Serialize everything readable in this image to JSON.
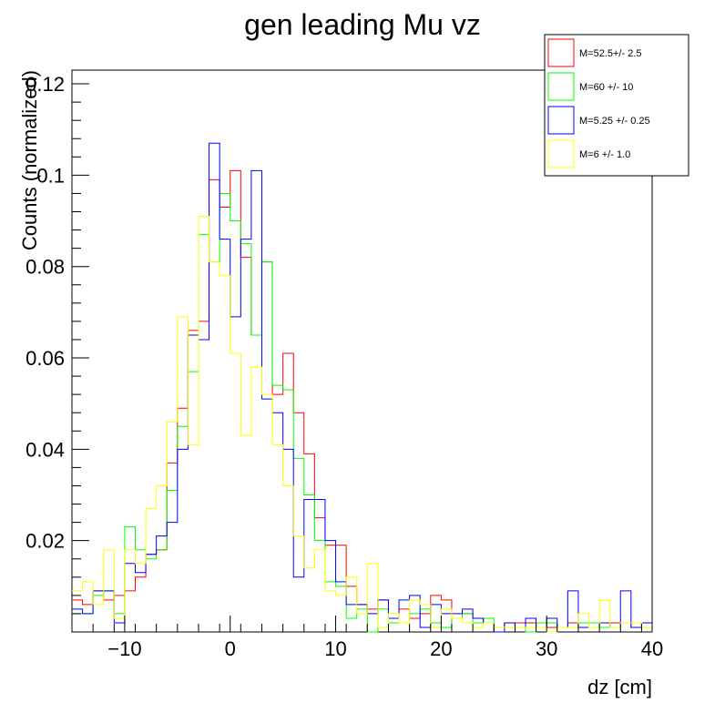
{
  "chart_data": {
    "type": "histogram",
    "title": "gen leading Mu vz",
    "xlabel": "dz [cm]",
    "ylabel": "Counts (normalized)",
    "xlim": [
      -15,
      40
    ],
    "ylim": [
      0,
      0.123
    ],
    "bin_width": 1,
    "x_ticks": [
      -10,
      0,
      10,
      20,
      30,
      40
    ],
    "x_tick_labels": [
      "−10",
      "0",
      "10",
      "20",
      "30",
      "40"
    ],
    "y_ticks": [
      0.02,
      0.04,
      0.06,
      0.08,
      0.1,
      0.12
    ],
    "y_tick_labels": [
      "0.02",
      "0.04",
      "0.06",
      "0.08",
      "0.1",
      "0.12"
    ],
    "legend_position": "top-right",
    "series": [
      {
        "name": "M=52.5+/- 2.5",
        "color": "#ff0000",
        "values": [
          0.007,
          0.006,
          0.009,
          0.007,
          0.008,
          0.009,
          0.012,
          0.017,
          0.018,
          0.037,
          0.049,
          0.066,
          0.068,
          0.099,
          0.093,
          0.101,
          0.082,
          0.065,
          0.081,
          0.052,
          0.061,
          0.048,
          0.039,
          0.025,
          0.019,
          0.019,
          0.01,
          0.006,
          0.005,
          0.007,
          0.003,
          0.005,
          0.003,
          0.004,
          0.008,
          0.007,
          0.003,
          0.004,
          0.003,
          0.002,
          0.001,
          0.002,
          0.002,
          0.002,
          0.002,
          0.001,
          0.001,
          0.002,
          0.001,
          0.001,
          0.001,
          0.002,
          0.002,
          0.001,
          0.002
        ]
      },
      {
        "name": "M=60 +/- 10",
        "color": "#00ff00",
        "values": [
          0.004,
          0.004,
          0.008,
          0.009,
          0.004,
          0.023,
          0.018,
          0.016,
          0.018,
          0.031,
          0.045,
          0.057,
          0.087,
          0.081,
          0.096,
          0.09,
          0.085,
          0.065,
          0.081,
          0.054,
          0.053,
          0.038,
          0.03,
          0.02,
          0.011,
          0.01,
          0.003,
          0.005,
          0.0,
          0.005,
          0.002,
          0.002,
          0.004,
          0.005,
          0.002,
          0.001,
          0.003,
          0.004,
          0.002,
          0.003,
          0.001,
          0.002,
          0.001,
          0.0,
          0.002,
          0.002,
          0.001,
          0.001,
          0.002,
          0.002,
          0.001,
          0.001,
          0.002,
          0.001,
          0.001
        ]
      },
      {
        "name": "M=5.25 +/- 0.25",
        "color": "#0000ff",
        "values": [
          0.005,
          0.004,
          0.009,
          0.009,
          0.002,
          0.015,
          0.013,
          0.017,
          0.021,
          0.024,
          0.04,
          0.065,
          0.064,
          0.107,
          0.086,
          0.069,
          0.086,
          0.101,
          0.051,
          0.048,
          0.04,
          0.012,
          0.029,
          0.029,
          0.02,
          0.011,
          0.006,
          0.006,
          0.004,
          0.007,
          0.003,
          0.007,
          0.008,
          0.001,
          0.006,
          0.004,
          0.004,
          0.005,
          0.003,
          0.002,
          0.0,
          0.002,
          0.001,
          0.003,
          0.001,
          0.003,
          0.001,
          0.009,
          0.001,
          0.001,
          0.002,
          0.001,
          0.009,
          0.001,
          0.002
        ]
      },
      {
        "name": "M=6 +/- 1.0",
        "color": "#ffff00",
        "values": [
          0.009,
          0.011,
          0.006,
          0.018,
          0.003,
          0.018,
          0.015,
          0.027,
          0.032,
          0.046,
          0.069,
          0.041,
          0.091,
          0.081,
          0.078,
          0.061,
          0.043,
          0.058,
          0.052,
          0.041,
          0.032,
          0.021,
          0.014,
          0.018,
          0.009,
          0.008,
          0.012,
          0.004,
          0.015,
          0.001,
          0.004,
          0.002,
          0.007,
          0.006,
          0.001,
          0.005,
          0.003,
          0.002,
          0.001,
          0.002,
          0.001,
          0.001,
          0.001,
          0.001,
          0.001,
          0.0,
          0.001,
          0.001,
          0.004,
          0.001,
          0.007,
          0.001,
          0.002,
          0.002,
          0.001
        ]
      }
    ]
  }
}
